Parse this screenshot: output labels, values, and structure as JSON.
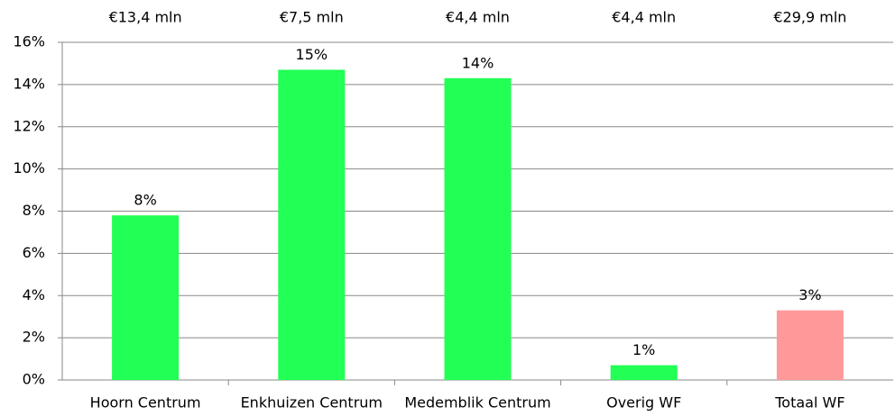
{
  "chart_data": {
    "type": "bar",
    "categories": [
      "Hoorn Centrum",
      "Enkhuizen Centrum",
      "Medemblik Centrum",
      "Overig WF",
      "Totaal WF"
    ],
    "values": [
      7.8,
      14.7,
      14.3,
      0.7,
      3.3
    ],
    "value_labels": [
      "8%",
      "15%",
      "14%",
      "1%",
      "3%"
    ],
    "top_labels": [
      "€13,4 mln",
      "€7,5 mln",
      "€4,4 mln",
      "€4,4 mln",
      "€29,9 mln"
    ],
    "colors": [
      "#22ff55",
      "#22ff55",
      "#22ff55",
      "#22ff55",
      "#ff9999"
    ],
    "ylim": [
      0,
      16
    ],
    "yticks": [
      {
        "value": 0,
        "label": "0%"
      },
      {
        "value": 2,
        "label": "2%"
      },
      {
        "value": 4,
        "label": "4%"
      },
      {
        "value": 6,
        "label": "6%"
      },
      {
        "value": 8,
        "label": "8%"
      },
      {
        "value": 10,
        "label": "10%"
      },
      {
        "value": 12,
        "label": "12%"
      },
      {
        "value": 14,
        "label": "14%"
      },
      {
        "value": 16,
        "label": "16%"
      }
    ],
    "grid": true
  }
}
